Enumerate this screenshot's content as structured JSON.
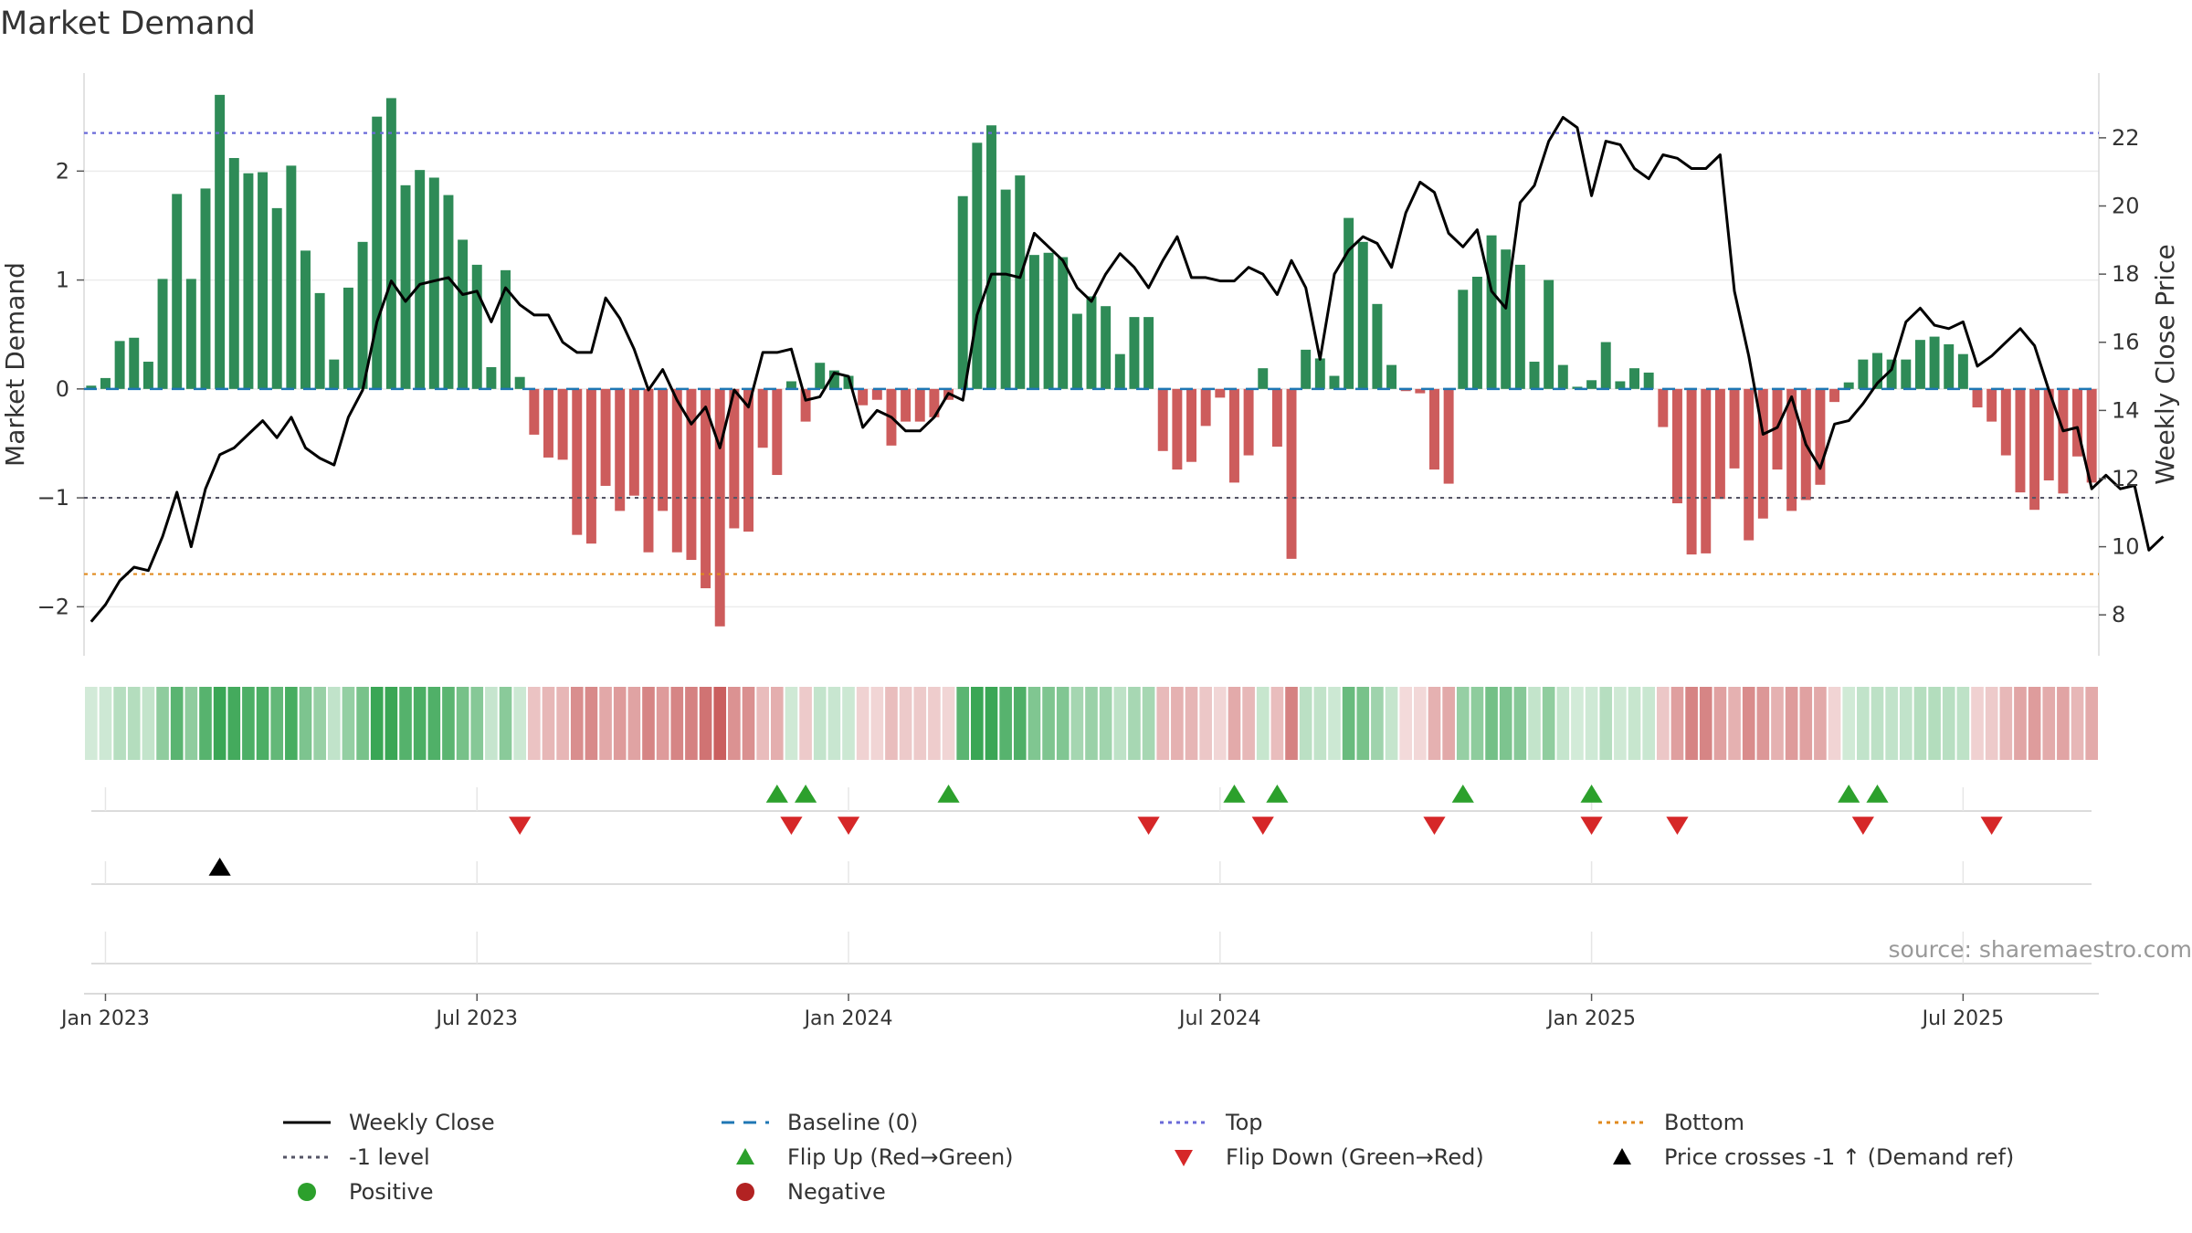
{
  "title": "Market Demand",
  "source": "source: sharemaestro.com",
  "colors": {
    "positive_bar": "#2e8b57",
    "negative_bar": "#cd5c5c",
    "price_line": "#000000",
    "baseline": "#1f77b4",
    "top_line": "#6a6ad8",
    "minus_one_line": "#555566",
    "bottom_line": "#e08a1e",
    "flip_up": "#2ca02c",
    "flip_down": "#d62728",
    "cross_marker": "#000000",
    "positive_dot": "#2ca02c",
    "negative_dot": "#b22222"
  },
  "chart_data": {
    "type": "bar",
    "title": "Market Demand",
    "ylabel_left": "Market Demand",
    "ylabel_right": "Weekly Close Price",
    "ylim_left": [
      -2.45,
      2.9
    ],
    "ylim_right": [
      6.8,
      23.9
    ],
    "left_ticks": [
      -2,
      -1,
      0,
      1,
      2
    ],
    "left_tick_labels": [
      "−2",
      "−1",
      "0",
      "1",
      "2"
    ],
    "right_ticks": [
      8,
      10,
      12,
      14,
      16,
      18,
      20,
      22
    ],
    "right_tick_labels": [
      "8",
      "10",
      "12",
      "14",
      "16",
      "18",
      "20",
      "22"
    ],
    "x_tick_labels": [
      "Jan 2023",
      "Jul 2023",
      "Jan 2024",
      "Jul 2024",
      "Jan 2025",
      "Jul 2025"
    ],
    "x_tick_weeks": [
      1.5,
      27.5,
      53.5,
      79.5,
      105.5,
      131.5
    ],
    "reference_lines": {
      "top": 2.35,
      "minus_one": -1.0,
      "bottom": -1.7,
      "baseline": 0
    },
    "demand": [
      0.03,
      0.1,
      0.44,
      0.47,
      0.25,
      1.01,
      1.79,
      1.01,
      1.84,
      2.7,
      2.12,
      1.98,
      1.99,
      1.66,
      2.05,
      1.27,
      0.88,
      0.27,
      0.93,
      1.35,
      2.5,
      2.67,
      1.87,
      2.01,
      1.94,
      1.78,
      1.37,
      1.14,
      0.2,
      1.09,
      0.11,
      -0.42,
      -0.63,
      -0.65,
      -1.34,
      -1.42,
      -0.89,
      -1.12,
      -0.98,
      -1.5,
      -1.12,
      -1.5,
      -1.57,
      -1.83,
      -2.18,
      -1.28,
      -1.31,
      -0.54,
      -0.79,
      0.07,
      -0.3,
      0.24,
      0.17,
      0.12,
      -0.15,
      -0.1,
      -0.52,
      -0.3,
      -0.3,
      -0.26,
      -0.1,
      1.77,
      2.26,
      2.42,
      1.83,
      1.96,
      1.23,
      1.25,
      1.21,
      0.69,
      0.85,
      0.76,
      0.32,
      0.66,
      0.66,
      -0.57,
      -0.74,
      -0.67,
      -0.34,
      -0.08,
      -0.86,
      -0.61,
      0.19,
      -0.53,
      -1.56,
      0.36,
      0.28,
      0.12,
      1.57,
      1.35,
      0.78,
      0.22,
      -0.02,
      -0.04,
      -0.74,
      -0.87,
      0.91,
      1.03,
      1.41,
      1.28,
      1.14,
      0.25,
      1.0,
      0.22,
      0.02,
      0.08,
      0.43,
      0.07,
      0.19,
      0.15,
      -0.35,
      -1.05,
      -1.52,
      -1.51,
      -1.01,
      -0.73,
      -1.39,
      -1.19,
      -0.74,
      -1.12,
      -1.02,
      -0.88,
      -0.12,
      0.06,
      0.27,
      0.33,
      0.27,
      0.27,
      0.45,
      0.48,
      0.41,
      0.32,
      -0.17,
      -0.3,
      -0.61,
      -0.95,
      -1.11,
      -0.84,
      -0.96,
      -0.62,
      -0.86
    ],
    "weekly_close": [
      7.8,
      8.3,
      9.0,
      9.4,
      9.3,
      10.3,
      11.6,
      10.0,
      11.7,
      12.7,
      12.9,
      13.3,
      13.7,
      13.2,
      13.8,
      12.9,
      12.6,
      12.4,
      13.8,
      14.6,
      16.6,
      17.8,
      17.2,
      17.7,
      17.8,
      17.9,
      17.4,
      17.5,
      16.6,
      17.6,
      17.1,
      16.8,
      16.8,
      16.0,
      15.7,
      15.7,
      17.3,
      16.7,
      15.8,
      14.6,
      15.2,
      14.3,
      13.6,
      14.1,
      12.9,
      14.6,
      14.1,
      15.7,
      15.7,
      15.8,
      14.3,
      14.4,
      15.1,
      15.0,
      13.5,
      14.0,
      13.8,
      13.4,
      13.4,
      13.8,
      14.5,
      14.3,
      16.8,
      18.0,
      18.0,
      17.9,
      19.2,
      18.8,
      18.4,
      17.6,
      17.2,
      18.0,
      18.6,
      18.2,
      17.6,
      18.4,
      19.1,
      17.9,
      17.9,
      17.8,
      17.8,
      18.2,
      18.0,
      17.4,
      18.4,
      17.6,
      15.5,
      18.0,
      18.7,
      19.1,
      18.9,
      18.2,
      19.8,
      20.7,
      20.4,
      19.2,
      18.8,
      19.3,
      17.5,
      17.0,
      20.1,
      20.6,
      21.9,
      22.6,
      22.3,
      20.3,
      21.9,
      21.8,
      21.1,
      20.8,
      21.5,
      21.4,
      21.1,
      21.1,
      21.5,
      17.5,
      15.6,
      13.3,
      13.5,
      14.4,
      13.0,
      12.3,
      13.6,
      13.7,
      14.2,
      14.8,
      15.2,
      16.6,
      17.0,
      16.5,
      16.4,
      16.6,
      15.3,
      15.6,
      16.0,
      16.4,
      15.9,
      14.6,
      13.4,
      13.5,
      11.7,
      12.1,
      11.7,
      11.8,
      9.9,
      10.3
    ],
    "flip_up_weeks": [
      48.5,
      50.5,
      60.5,
      80.5,
      83.5,
      96.5,
      105.5,
      123.5,
      125.5
    ],
    "flip_down_weeks": [
      30.5,
      49.5,
      53.5,
      74.5,
      82.5,
      94.5,
      105.5,
      111.5,
      124.5,
      133.5
    ],
    "price_cross_weeks": [
      9.5
    ],
    "legend": [
      "Weekly Close",
      "Baseline (0)",
      "Top",
      "Bottom",
      "-1 level",
      "Flip Up (Red→Green)",
      "Flip Down (Green→Red)",
      "Price crosses -1 ↑ (Demand ref)",
      "Positive",
      "Negative"
    ]
  }
}
